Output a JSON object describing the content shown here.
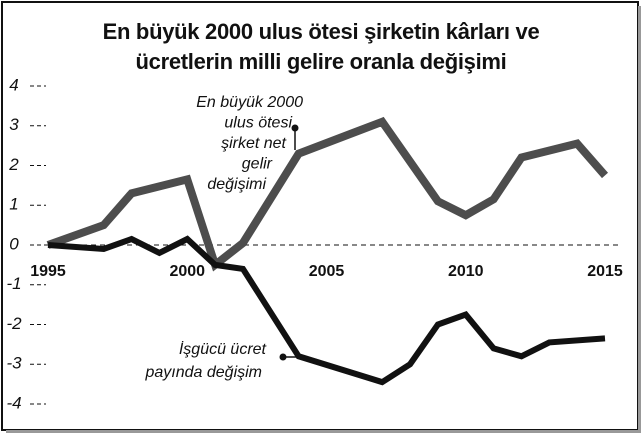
{
  "chart_data": {
    "type": "line",
    "title": [
      "En büyük 2000 ulus ötesi şirketin kârları ve",
      "ücretlerin milli gelire oranla değişimi"
    ],
    "xlim": [
      1995,
      2015
    ],
    "xticks": [
      1995,
      2000,
      2005,
      2010,
      2015
    ],
    "ylim": [
      -4,
      4
    ],
    "yticks": [
      4,
      3,
      2,
      1,
      0,
      -1,
      -2,
      -3,
      -4
    ],
    "series": [
      {
        "color": "#4d4d4d",
        "x": [
          1995,
          1997,
          1998,
          2000,
          2001,
          2002,
          2004,
          2007,
          2009,
          2010,
          2011,
          2012,
          2014,
          2015
        ],
        "values": [
          0,
          0.5,
          1.3,
          1.65,
          -0.5,
          0.05,
          2.3,
          3.1,
          1.1,
          0.75,
          1.15,
          2.2,
          2.55,
          1.75
        ]
      },
      {
        "color": "#111111",
        "x": [
          1995,
          1997,
          1998,
          1999,
          2000,
          2001,
          2002,
          2004,
          2007,
          2008,
          2009,
          2010,
          2011,
          2012,
          2013,
          2015
        ],
        "values": [
          0,
          -0.1,
          0.15,
          -0.2,
          0.15,
          -0.5,
          -0.6,
          -2.8,
          -3.45,
          -3.0,
          -2.0,
          -1.75,
          -2.6,
          -2.8,
          -2.45,
          -2.35
        ]
      }
    ],
    "annotations": [
      [
        "En büyük 2000",
        "ulus ötesi",
        "şirket net",
        "gelir",
        "değişimi"
      ],
      [
        "İşgücü ücret",
        "payında değişim"
      ]
    ]
  }
}
